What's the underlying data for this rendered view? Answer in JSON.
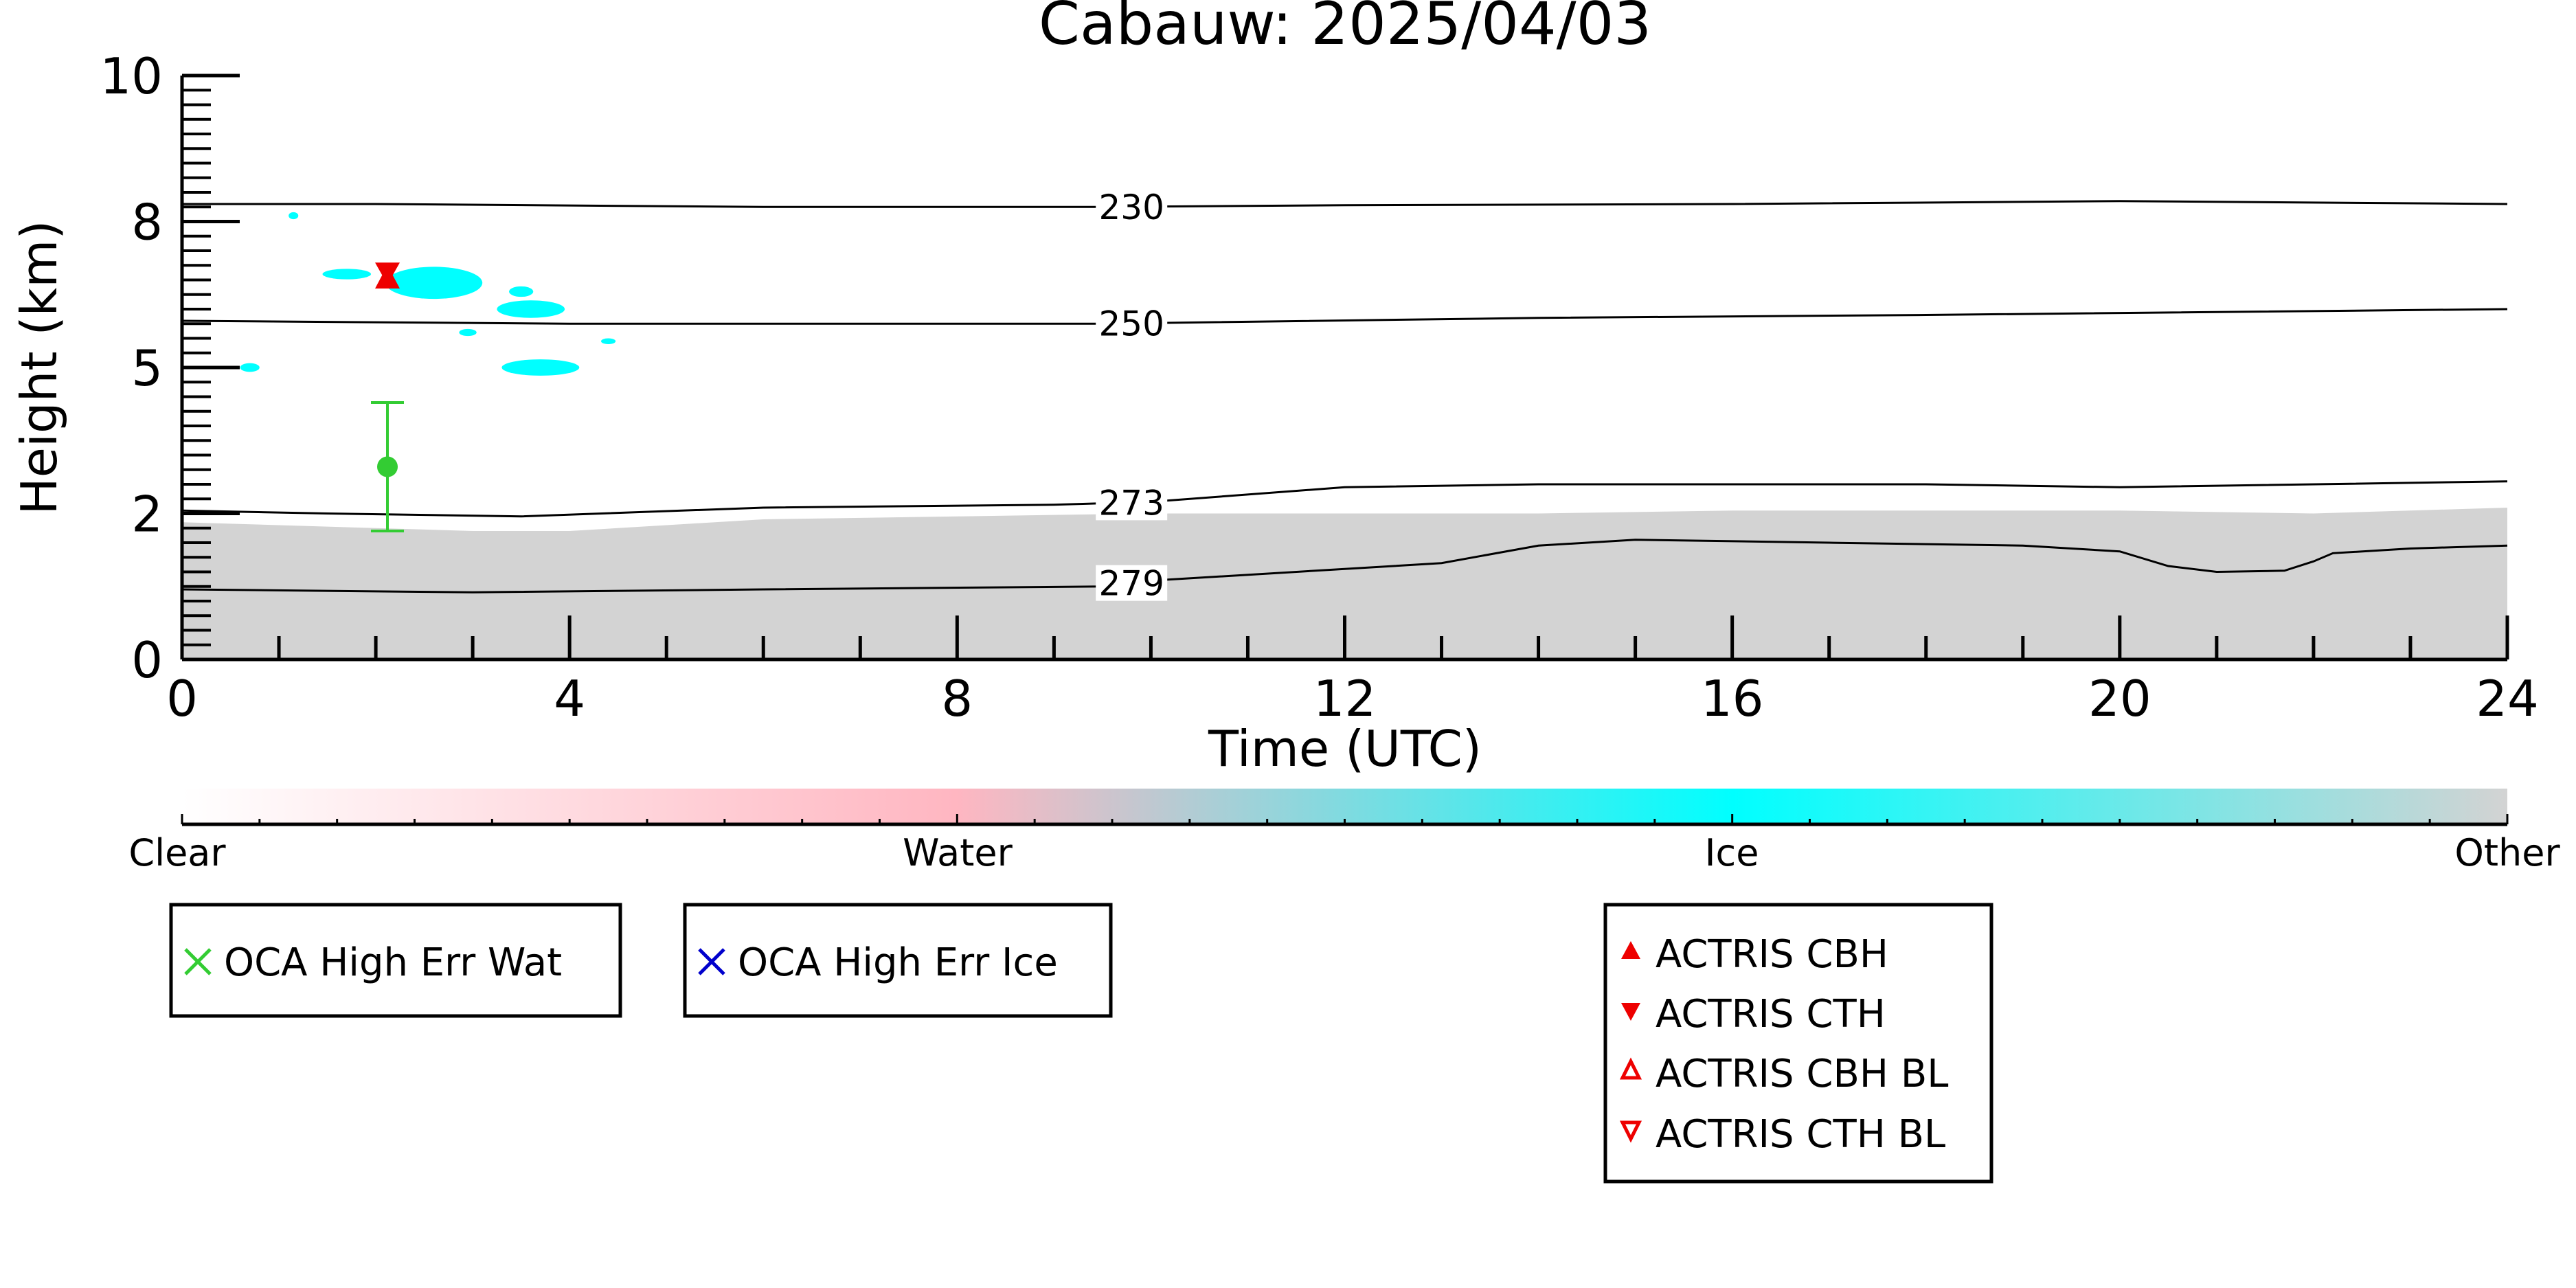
{
  "chart_data": {
    "type": "scatter",
    "title": "Cabauw: 2025/04/03",
    "xlabel": "Time (UTC)",
    "ylabel": "Height (km)",
    "xlim": [
      0,
      24
    ],
    "ylim": [
      0,
      10
    ],
    "x_ticks": [
      0,
      4,
      8,
      12,
      16,
      20,
      24
    ],
    "y_ticks": [
      {
        "value": 0,
        "label": "0"
      },
      {
        "value": 2.5,
        "label": "2"
      },
      {
        "value": 5,
        "label": "5"
      },
      {
        "value": 7.5,
        "label": "8"
      },
      {
        "value": 10,
        "label": "10"
      }
    ],
    "grid": false,
    "colorbar": {
      "labels": [
        "Clear",
        "Water",
        "Ice",
        "Other"
      ],
      "stops": [
        "#ffffff",
        "#ffb6c1",
        "#00ffff",
        "#d3d3d3"
      ]
    },
    "isotherms": [
      {
        "label": "230",
        "points": [
          [
            0,
            7.8
          ],
          [
            2,
            7.8
          ],
          [
            6,
            7.75
          ],
          [
            9.5,
            7.75
          ],
          [
            12,
            7.78
          ],
          [
            16,
            7.8
          ],
          [
            20,
            7.85
          ],
          [
            24,
            7.8
          ]
        ]
      },
      {
        "label": "250",
        "points": [
          [
            0,
            5.8
          ],
          [
            4,
            5.75
          ],
          [
            9.5,
            5.75
          ],
          [
            14,
            5.85
          ],
          [
            18,
            5.9
          ],
          [
            24,
            6.0
          ]
        ]
      },
      {
        "label": "273",
        "points": [
          [
            0,
            2.55
          ],
          [
            1.5,
            2.5
          ],
          [
            3.5,
            2.45
          ],
          [
            6,
            2.6
          ],
          [
            9,
            2.65
          ],
          [
            10,
            2.7
          ],
          [
            12,
            2.95
          ],
          [
            14,
            3.0
          ],
          [
            18,
            3.0
          ],
          [
            20,
            2.95
          ],
          [
            24,
            3.05
          ]
        ]
      },
      {
        "label": "279",
        "points": [
          [
            0,
            1.2
          ],
          [
            3,
            1.15
          ],
          [
            6,
            1.2
          ],
          [
            9.5,
            1.25
          ],
          [
            10,
            1.35
          ],
          [
            12,
            1.55
          ],
          [
            13,
            1.65
          ],
          [
            14,
            1.95
          ],
          [
            15,
            2.05
          ],
          [
            17,
            2.0
          ],
          [
            19,
            1.95
          ],
          [
            20,
            1.85
          ],
          [
            20.5,
            1.6
          ],
          [
            21,
            1.5
          ],
          [
            21.7,
            1.52
          ],
          [
            22,
            1.68
          ],
          [
            22.2,
            1.82
          ],
          [
            23,
            1.9
          ],
          [
            24,
            1.95
          ]
        ]
      }
    ],
    "other_layer": [
      [
        0,
        2.35
      ],
      [
        1,
        2.3
      ],
      [
        2,
        2.25
      ],
      [
        3,
        2.2
      ],
      [
        4,
        2.2
      ],
      [
        6,
        2.4
      ],
      [
        8,
        2.45
      ],
      [
        10,
        2.5
      ],
      [
        12,
        2.5
      ],
      [
        14,
        2.5
      ],
      [
        16,
        2.55
      ],
      [
        18,
        2.55
      ],
      [
        20,
        2.55
      ],
      [
        22,
        2.5
      ],
      [
        24,
        2.6
      ]
    ],
    "ice_clouds": [
      {
        "x": 2.6,
        "y": 6.45,
        "w": 1.0,
        "h": 0.55
      },
      {
        "x": 3.6,
        "y": 6.0,
        "w": 0.7,
        "h": 0.3
      },
      {
        "x": 3.7,
        "y": 5.0,
        "w": 0.8,
        "h": 0.28
      },
      {
        "x": 0.7,
        "y": 5.0,
        "w": 0.2,
        "h": 0.15
      },
      {
        "x": 1.7,
        "y": 6.6,
        "w": 0.5,
        "h": 0.18
      },
      {
        "x": 2.95,
        "y": 5.6,
        "w": 0.18,
        "h": 0.12
      },
      {
        "x": 4.4,
        "y": 5.45,
        "w": 0.15,
        "h": 0.1
      },
      {
        "x": 1.15,
        "y": 7.6,
        "w": 0.1,
        "h": 0.12
      },
      {
        "x": 3.5,
        "y": 6.3,
        "w": 0.25,
        "h": 0.18
      }
    ],
    "oca_water": {
      "x": 2.12,
      "y": 3.3,
      "err_low": 2.2,
      "err_high": 4.4
    },
    "actris_cbh": {
      "x": 2.12,
      "y": 6.4
    },
    "actris_cth": {
      "x": 2.12,
      "y": 6.75
    },
    "legends": {
      "oca_water": "OCA High Err Wat",
      "oca_ice": "OCA High Err Ice",
      "actris": [
        "ACTRIS CBH",
        "ACTRIS CTH",
        "ACTRIS CBH BL",
        "ACTRIS CTH BL"
      ]
    },
    "colors": {
      "water_marker": "#33cc33",
      "ice_marker": "#0000cc",
      "actris": "#ee0000",
      "ice": "#00ffff",
      "other": "#d3d3d3"
    }
  }
}
